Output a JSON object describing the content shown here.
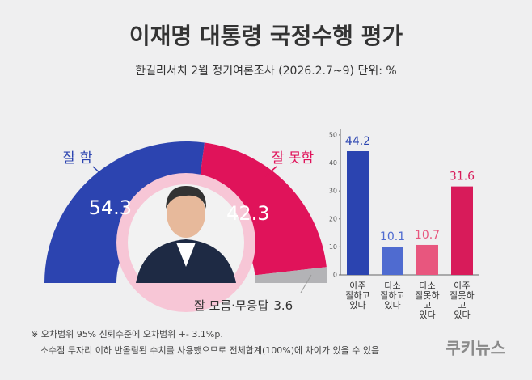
{
  "chart_data": [
    {
      "type": "half-donut",
      "title": "이재명 대통령 국정수행 평가",
      "subtitle": "한길리서치 2월 정기여론조사 (2026.2.7~9) 단위: %",
      "categories": [
        "잘 함",
        "잘 못함",
        "잘 모름·무응답"
      ],
      "values": [
        54.3,
        42.3,
        3.6
      ],
      "colors": [
        "#2c44b0",
        "#e0135a",
        "#b3b3b6"
      ]
    },
    {
      "type": "bar",
      "categories": [
        "아주\n잘하고\n있다",
        "다소\n잘하고\n있다",
        "다소\n잘못하고\n있다",
        "아주\n잘못하고\n있다"
      ],
      "values": [
        44.2,
        10.1,
        10.7,
        31.6
      ],
      "colors": [
        "#2b44b0",
        "#4f6bd0",
        "#e8567e",
        "#d81b5a"
      ],
      "ylim": [
        0,
        52
      ],
      "yticks": [
        0,
        10,
        20,
        30,
        40,
        50
      ]
    }
  ],
  "notes": [
    "※ 오차범위 95% 신뢰수준에 오차범위 +- 3.1%p.",
    "소수점 두자리 이하 반올림된 수치를 사용했으므로 전체합계(100%)에 차이가 있을 수 있음"
  ],
  "logo": "쿠키뉴스"
}
